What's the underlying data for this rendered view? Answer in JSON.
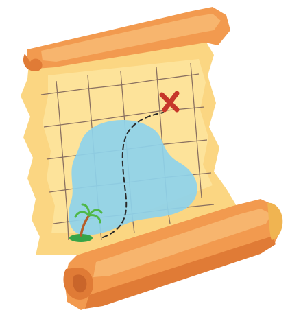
{
  "illustration": {
    "subject": "treasure-map-scroll",
    "elements": [
      "paper-scroll",
      "grid",
      "lake",
      "island",
      "palm-tree",
      "dashed-route",
      "x-mark"
    ]
  },
  "colors": {
    "outline": "#ffffff",
    "paper_light": "#fde39a",
    "paper": "#f9cf6e",
    "paper_shade": "#f0b451",
    "roll_light": "#f7b56e",
    "roll": "#f29a4f",
    "roll_dark": "#e07b36",
    "grid": "#8a7060",
    "lake": "#8ed3ec",
    "island": "#37a447",
    "palm_trunk": "#b65e2a",
    "palm_leaf": "#4fb848",
    "route": "#2a2a2a",
    "x_mark": "#c6372a"
  }
}
